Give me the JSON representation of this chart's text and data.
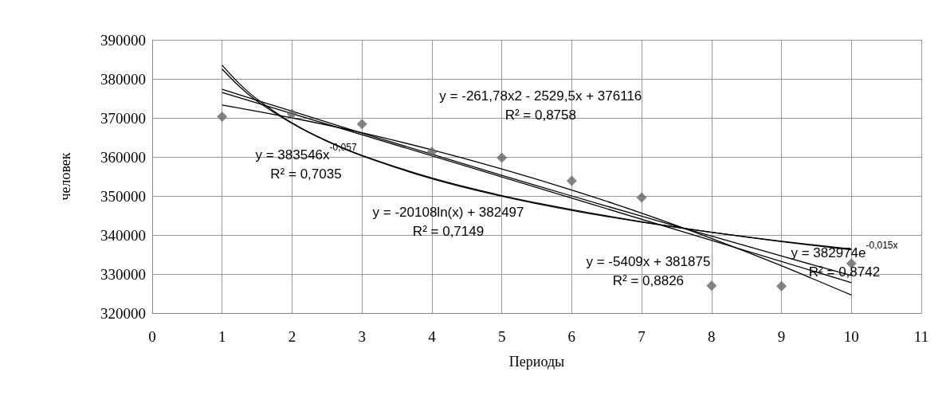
{
  "chart_data": {
    "type": "scatter",
    "xlabel": "Периоды",
    "ylabel": "человек",
    "xlim": [
      0,
      11
    ],
    "xticks": [
      0,
      1,
      2,
      3,
      4,
      5,
      6,
      7,
      8,
      9,
      10,
      11
    ],
    "ylim": [
      320000,
      390000
    ],
    "yticks": [
      320000,
      330000,
      340000,
      350000,
      360000,
      370000,
      380000,
      390000
    ],
    "grid": true,
    "marker": "diamond",
    "x": [
      1,
      2,
      3,
      4,
      5,
      6,
      7,
      8,
      9,
      10
    ],
    "series": [
      {
        "color": "#666666",
        "values": [
          370300,
          371000,
          368400,
          361300,
          359800,
          353900,
          349600,
          327000,
          326900,
          332700
        ]
      },
      {
        "type": "line",
        "color": "#000000",
        "line_style": "solid",
        "marker": "none",
        "x": [
          1,
          2,
          3,
          4,
          5,
          6,
          7,
          8,
          9,
          10
        ],
        "values": [
          373300,
          370000,
          366200,
          361800,
          356900,
          351500,
          345600,
          339100,
          332100,
          324600
        ]
      },
      {
        "type": "line",
        "color": "#000000",
        "line_style": "solid",
        "marker": "none",
        "x": [
          1,
          1.25,
          1.5,
          2,
          2.5,
          3,
          4,
          5,
          6,
          7,
          8,
          9,
          10
        ],
        "values": [
          383500,
          378700,
          374800,
          368700,
          364000,
          360300,
          354400,
          349900,
          346300,
          343300,
          340700,
          338400,
          336400
        ]
      },
      {
        "type": "line",
        "color": "#000000",
        "line_style": "solid",
        "marker": "none",
        "x": [
          1,
          1.25,
          1.5,
          2,
          2.5,
          3,
          4,
          5,
          6,
          7,
          8,
          9,
          10
        ],
        "values": [
          382500,
          378000,
          374300,
          368600,
          364100,
          360400,
          354600,
          350100,
          346500,
          343400,
          340700,
          338300,
          336200
        ]
      },
      {
        "type": "line",
        "color": "#000000",
        "line_style": "solid",
        "marker": "none",
        "x": [
          1,
          10
        ],
        "values": [
          376500,
          327800
        ]
      },
      {
        "type": "line",
        "color": "#000000",
        "line_style": "solid",
        "marker": "none",
        "x": [
          1,
          2,
          3,
          4,
          5,
          6,
          7,
          8,
          9,
          10
        ],
        "values": [
          377300,
          371700,
          366100,
          360700,
          355300,
          350000,
          344800,
          339700,
          334600,
          329600
        ]
      }
    ],
    "annotations": [
      "y = -261,78x2 - 2529,5x + 376116\nR² = 0,8758",
      "y = 383546x$^{-0,057}$\nR² = 0,7035",
      "y = -20108ln(x) + 382497\nR² = 0,7149",
      "y = -5409x + 381875\nR² = 0,8826",
      "y = 382974e$^{-0,015x}$\nR² = 0,8742"
    ]
  }
}
